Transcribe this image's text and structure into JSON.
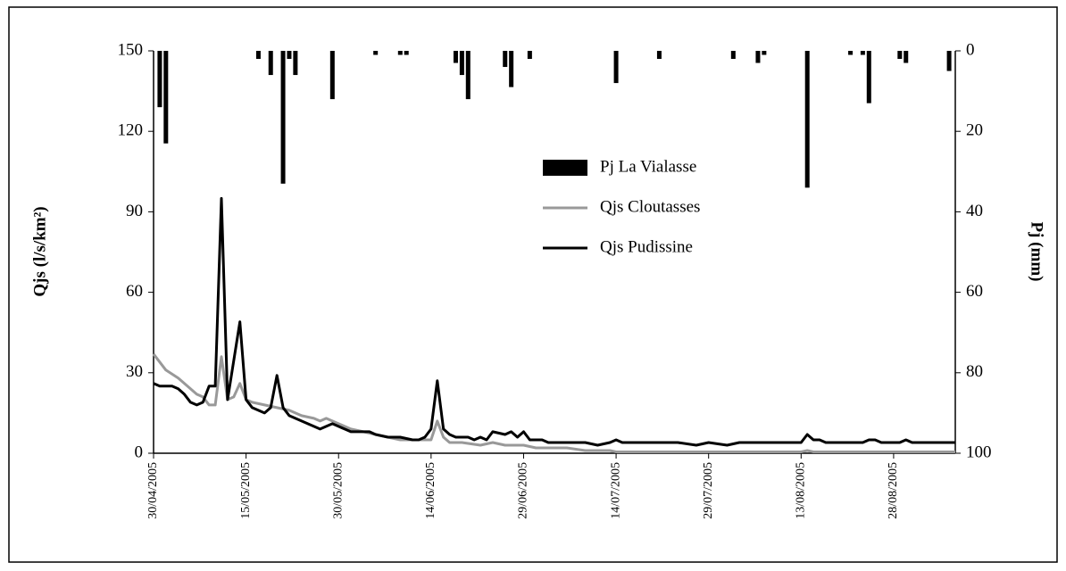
{
  "chart_data": {
    "type": "line",
    "y_label": "Qjs (l/s/km²)",
    "y2_label": "Pj (mm)",
    "xlim": [
      "30/04/2005",
      "07/09/2005"
    ],
    "xticks": [
      "30/04/2005",
      "15/05/2005",
      "30/05/2005",
      "14/06/2005",
      "29/06/2005",
      "14/07/2005",
      "29/07/2005",
      "13/08/2005",
      "28/08/2005"
    ],
    "ylim": [
      0,
      150
    ],
    "yticks": [
      0,
      30,
      60,
      90,
      120,
      150
    ],
    "y2lim": [
      100,
      0
    ],
    "y2ticks": [
      0,
      20,
      40,
      60,
      80,
      100
    ],
    "legend": "upper-center",
    "series": [
      {
        "name": "Pj La Vialasse",
        "type": "bar",
        "axis": "y2",
        "color": "#000000",
        "x": [
          "01/05/2005",
          "02/05/2005",
          "17/05/2005",
          "19/05/2005",
          "21/05/2005",
          "22/05/2005",
          "23/05/2005",
          "29/05/2005",
          "05/06/2005",
          "09/06/2005",
          "10/06/2005",
          "18/06/2005",
          "19/06/2005",
          "20/06/2005",
          "26/06/2005",
          "27/06/2005",
          "30/06/2005",
          "14/07/2005",
          "21/07/2005",
          "02/08/2005",
          "06/08/2005",
          "07/08/2005",
          "14/08/2005",
          "21/08/2005",
          "23/08/2005",
          "24/08/2005",
          "29/08/2005",
          "30/08/2005",
          "06/09/2005"
        ],
        "values": [
          14,
          23,
          2,
          6,
          33,
          2,
          6,
          12,
          1,
          1,
          1,
          3,
          6,
          12,
          4,
          9,
          2,
          8,
          2,
          2,
          3,
          1,
          34,
          1,
          1,
          13,
          2,
          3,
          5
        ]
      },
      {
        "name": "Qjs Cloutasses",
        "type": "line",
        "color": "#999999",
        "x": [
          "30/04/2005",
          "01/05/2005",
          "02/05/2005",
          "04/05/2005",
          "05/05/2005",
          "07/05/2005",
          "08/05/2005",
          "09/05/2005",
          "10/05/2005",
          "11/05/2005",
          "12/05/2005",
          "13/05/2005",
          "14/05/2005",
          "15/05/2005",
          "16/05/2005",
          "18/05/2005",
          "20/05/2005",
          "22/05/2005",
          "24/05/2005",
          "26/05/2005",
          "27/05/2005",
          "28/05/2005",
          "30/05/2005",
          "01/06/2005",
          "03/06/2005",
          "05/06/2005",
          "07/06/2005",
          "09/06/2005",
          "14/06/2005",
          "15/06/2005",
          "16/06/2005",
          "17/06/2005",
          "19/06/2005",
          "22/06/2005",
          "24/06/2005",
          "26/06/2005",
          "29/06/2005",
          "01/07/2005",
          "06/07/2005",
          "09/07/2005",
          "13/07/2005",
          "14/07/2005",
          "13/08/2005",
          "14/08/2005",
          "15/08/2005",
          "07/09/2005"
        ],
        "values": [
          37,
          34,
          31,
          28,
          26,
          22,
          21,
          18,
          18,
          36,
          20,
          21,
          26,
          20,
          19,
          18,
          17,
          16,
          14,
          13,
          12,
          13,
          11,
          9,
          8,
          7,
          6,
          5,
          5,
          12,
          6,
          4,
          4,
          3,
          4,
          3,
          3,
          2,
          2,
          1,
          1,
          0.5,
          0.5,
          1,
          0.5,
          0.5
        ]
      },
      {
        "name": "Qjs Pudissine",
        "type": "line",
        "color": "#000000",
        "x": [
          "30/04/2005",
          "01/05/2005",
          "03/05/2005",
          "04/05/2005",
          "05/05/2005",
          "06/05/2005",
          "07/05/2005",
          "08/05/2005",
          "09/05/2005",
          "10/05/2005",
          "11/05/2005",
          "12/05/2005",
          "14/05/2005",
          "15/05/2005",
          "16/05/2005",
          "17/05/2005",
          "18/05/2005",
          "19/05/2005",
          "20/05/2005",
          "21/05/2005",
          "22/05/2005",
          "23/05/2005",
          "24/05/2005",
          "25/05/2005",
          "26/05/2005",
          "27/05/2005",
          "28/05/2005",
          "29/05/2005",
          "30/05/2005",
          "31/05/2005",
          "01/06/2005",
          "04/06/2005",
          "05/06/2005",
          "07/06/2005",
          "09/06/2005",
          "11/06/2005",
          "12/06/2005",
          "13/06/2005",
          "14/06/2005",
          "15/06/2005",
          "16/06/2005",
          "17/06/2005",
          "18/06/2005",
          "20/06/2005",
          "21/06/2005",
          "22/06/2005",
          "23/06/2005",
          "24/06/2005",
          "26/06/2005",
          "27/06/2005",
          "28/06/2005",
          "29/06/2005",
          "30/06/2005",
          "02/07/2005",
          "03/07/2005",
          "05/07/2005",
          "09/07/2005",
          "11/07/2005",
          "13/07/2005",
          "14/07/2005",
          "15/07/2005",
          "17/07/2005",
          "24/07/2005",
          "27/07/2005",
          "29/07/2005",
          "01/08/2005",
          "03/08/2005",
          "13/08/2005",
          "14/08/2005",
          "15/08/2005",
          "16/08/2005",
          "17/08/2005",
          "23/08/2005",
          "24/08/2005",
          "25/08/2005",
          "26/08/2005",
          "29/08/2005",
          "30/08/2005",
          "31/08/2005",
          "07/09/2005"
        ],
        "values": [
          26,
          25,
          25,
          24,
          22,
          19,
          18,
          19,
          25,
          25,
          95,
          20,
          49,
          20,
          17,
          16,
          15,
          17,
          29,
          17,
          14,
          13,
          12,
          11,
          10,
          9,
          10,
          11,
          10,
          9,
          8,
          8,
          7,
          6,
          6,
          5,
          5,
          6,
          9,
          27,
          9,
          7,
          6,
          6,
          5,
          6,
          5,
          8,
          7,
          8,
          6,
          8,
          5,
          5,
          4,
          4,
          4,
          3,
          4,
          5,
          4,
          4,
          4,
          3,
          4,
          3,
          4,
          4,
          7,
          5,
          5,
          4,
          4,
          5,
          5,
          4,
          4,
          5,
          4,
          4
        ]
      }
    ]
  }
}
